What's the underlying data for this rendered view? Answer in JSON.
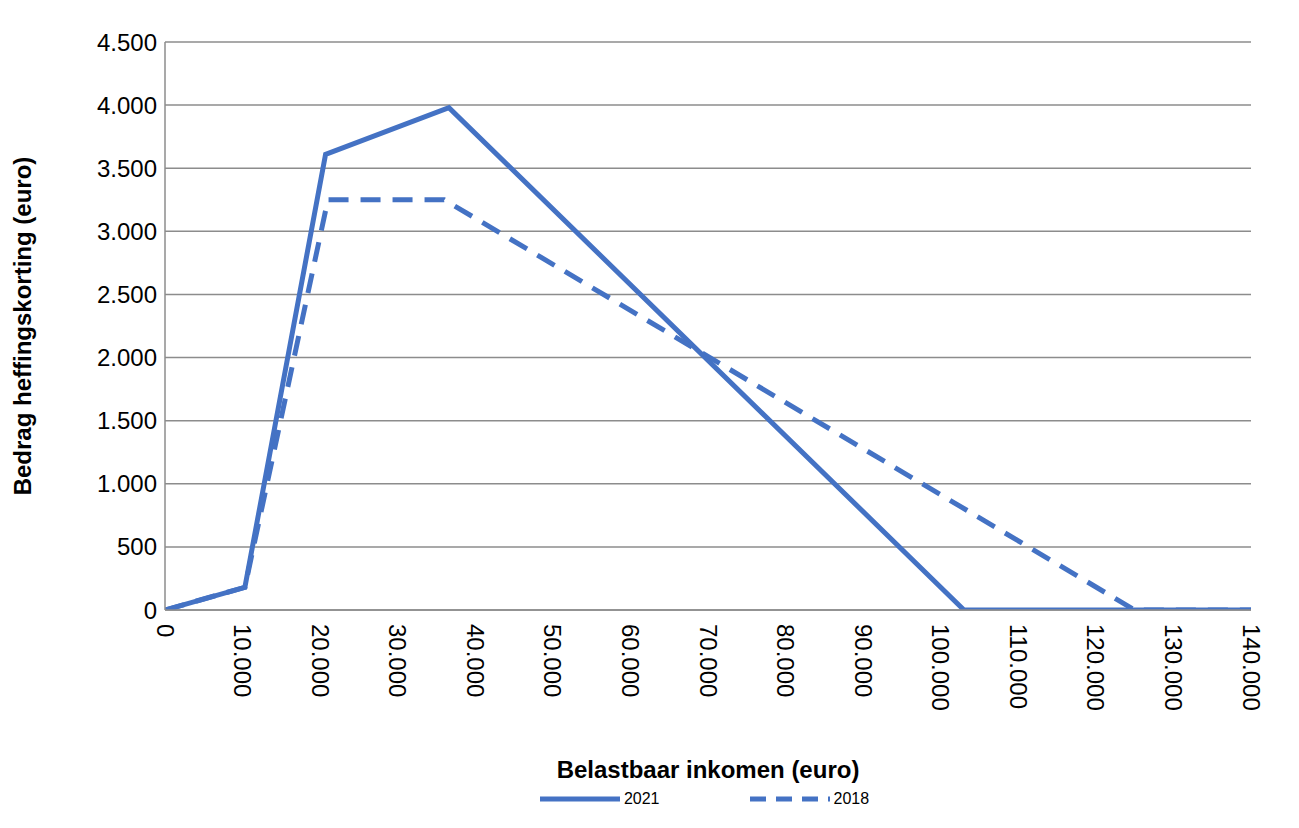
{
  "chart_data": {
    "type": "line",
    "x_label": "Belastbaar inkomen (euro)",
    "y_label": "Bedrag heffingskorting (euro)",
    "xlim": [
      0,
      140000
    ],
    "ylim": [
      0,
      4500
    ],
    "xticks": [
      0,
      {
        "value": 10000,
        "label": "10.000"
      },
      {
        "value": 20000,
        "label": "20.000"
      },
      {
        "value": 30000,
        "label": "30.000"
      },
      {
        "value": 40000,
        "label": "40.000"
      },
      {
        "value": 50000,
        "label": "50.000"
      },
      {
        "value": 60000,
        "label": "60.000"
      },
      {
        "value": 70000,
        "label": "70.000"
      },
      {
        "value": 80000,
        "label": "80.000"
      },
      {
        "value": 90000,
        "label": "90.000"
      },
      {
        "value": 100000,
        "label": "100.000"
      },
      {
        "value": 110000,
        "label": "110.000"
      },
      {
        "value": 120000,
        "label": "120.000"
      },
      {
        "value": 130000,
        "label": "130.000"
      },
      {
        "value": 140000,
        "label": "140.000"
      }
    ],
    "yticks": [
      0,
      500,
      {
        "value": 1000,
        "label": "1.000"
      },
      {
        "value": 1500,
        "label": "1.500"
      },
      {
        "value": 2000,
        "label": "2.000"
      },
      {
        "value": 2500,
        "label": "2.500"
      },
      {
        "value": 3000,
        "label": "3.000"
      },
      {
        "value": 3500,
        "label": "3.500"
      },
      {
        "value": 4000,
        "label": "4.000"
      },
      {
        "value": 4500,
        "label": "4.500"
      }
    ],
    "grid": "y",
    "legend": "bottom",
    "series": [
      {
        "name": "2021",
        "color": "#4472c4",
        "line_style": "solid",
        "x": [
          0,
          10300,
          20700,
          36600,
          103000,
          140000
        ],
        "values": [
          0,
          180,
          3610,
          3980,
          0,
          0
        ]
      },
      {
        "name": "2018",
        "color": "#4472c4",
        "line_style": "dashed",
        "x": [
          0,
          10300,
          21000,
          36000,
          125000,
          140000
        ],
        "values": [
          0,
          180,
          3250,
          3250,
          0,
          0
        ]
      }
    ]
  }
}
